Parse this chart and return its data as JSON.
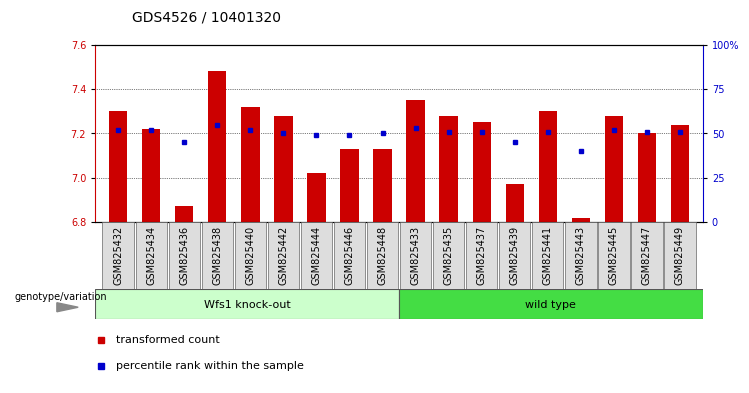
{
  "title": "GDS4526 / 10401320",
  "samples": [
    "GSM825432",
    "GSM825434",
    "GSM825436",
    "GSM825438",
    "GSM825440",
    "GSM825442",
    "GSM825444",
    "GSM825446",
    "GSM825448",
    "GSM825433",
    "GSM825435",
    "GSM825437",
    "GSM825439",
    "GSM825441",
    "GSM825443",
    "GSM825445",
    "GSM825447",
    "GSM825449"
  ],
  "bar_values": [
    7.3,
    7.22,
    6.87,
    7.48,
    7.32,
    7.28,
    7.02,
    7.13,
    7.13,
    7.35,
    7.28,
    7.25,
    6.97,
    7.3,
    6.82,
    7.28,
    7.2,
    7.24
  ],
  "percentile_values": [
    52,
    52,
    45,
    55,
    52,
    50,
    49,
    49,
    50,
    53,
    51,
    51,
    45,
    51,
    40,
    52,
    51,
    51
  ],
  "ylim_left": [
    6.8,
    7.6
  ],
  "ylim_right": [
    0,
    100
  ],
  "yticks_left": [
    6.8,
    7.0,
    7.2,
    7.4,
    7.6
  ],
  "yticks_right": [
    0,
    25,
    50,
    75,
    100
  ],
  "ytick_labels_right": [
    "0",
    "25",
    "50",
    "75",
    "100%"
  ],
  "bar_color": "#cc0000",
  "dot_color": "#0000cc",
  "group1_label": "Wfs1 knock-out",
  "group2_label": "wild type",
  "group1_count": 9,
  "group2_count": 9,
  "group1_color": "#ccffcc",
  "group2_color": "#44dd44",
  "genotype_label": "genotype/variation",
  "legend_bar": "transformed count",
  "legend_dot": "percentile rank within the sample",
  "background_color": "#ffffff",
  "title_fontsize": 10,
  "tick_fontsize": 7,
  "bar_width": 0.55
}
